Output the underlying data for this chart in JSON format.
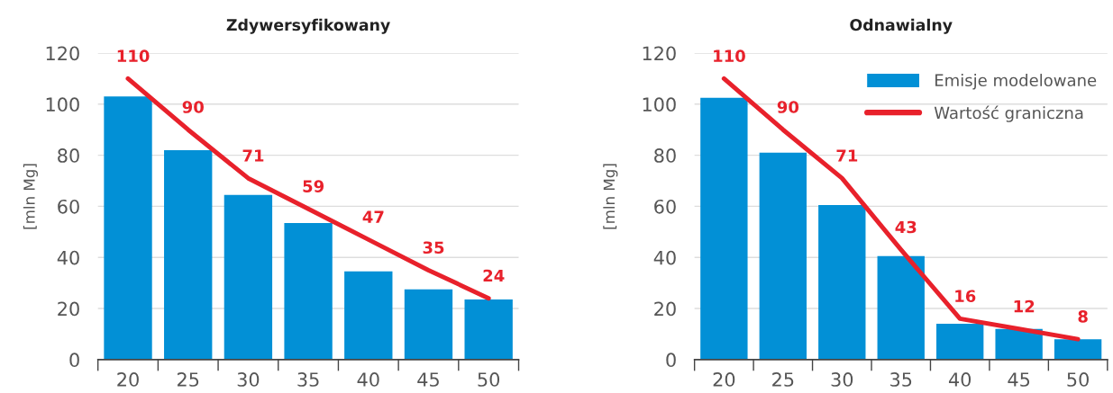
{
  "chart_data": [
    {
      "type": "bar",
      "title": "Zdywersyfikowany",
      "ylabel": "[mln Mg]",
      "categories": [
        "20",
        "25",
        "30",
        "35",
        "40",
        "45",
        "50"
      ],
      "series": [
        {
          "color": "#0290d6",
          "values": [
            103,
            82,
            64.5,
            53.5,
            34.5,
            27.5,
            23.5
          ]
        },
        {
          "type": "line",
          "color": "#e8212b",
          "values": [
            110,
            90,
            71,
            59,
            47,
            35,
            24
          ],
          "value_labels": [
            "110",
            "90",
            "71",
            "59",
            "47",
            "35",
            "24"
          ]
        }
      ],
      "ylim": [
        0,
        120
      ],
      "yticks": [
        0,
        20,
        40,
        60,
        80,
        100,
        120
      ],
      "grid": "y",
      "legend": false,
      "line_style": "solid"
    },
    {
      "type": "bar",
      "title": "Odnawialny",
      "ylabel": "[mln Mg]",
      "categories": [
        "20",
        "25",
        "30",
        "35",
        "40",
        "45",
        "50"
      ],
      "series": [
        {
          "name": "Emisje modelowane",
          "color": "#0290d6",
          "values": [
            102.5,
            81,
            60.5,
            40.5,
            14,
            12,
            8
          ]
        },
        {
          "type": "line",
          "name": "Wartość graniczna",
          "color": "#e8212b",
          "values": [
            110,
            90,
            71,
            43,
            16,
            12,
            8
          ],
          "value_labels": [
            "110",
            "90",
            "71",
            "43",
            "16",
            "12",
            "8"
          ]
        }
      ],
      "ylim": [
        0,
        120
      ],
      "yticks": [
        0,
        20,
        40,
        60,
        80,
        100,
        120
      ],
      "grid": "y",
      "legend": "top right",
      "line_style": "solid"
    }
  ]
}
